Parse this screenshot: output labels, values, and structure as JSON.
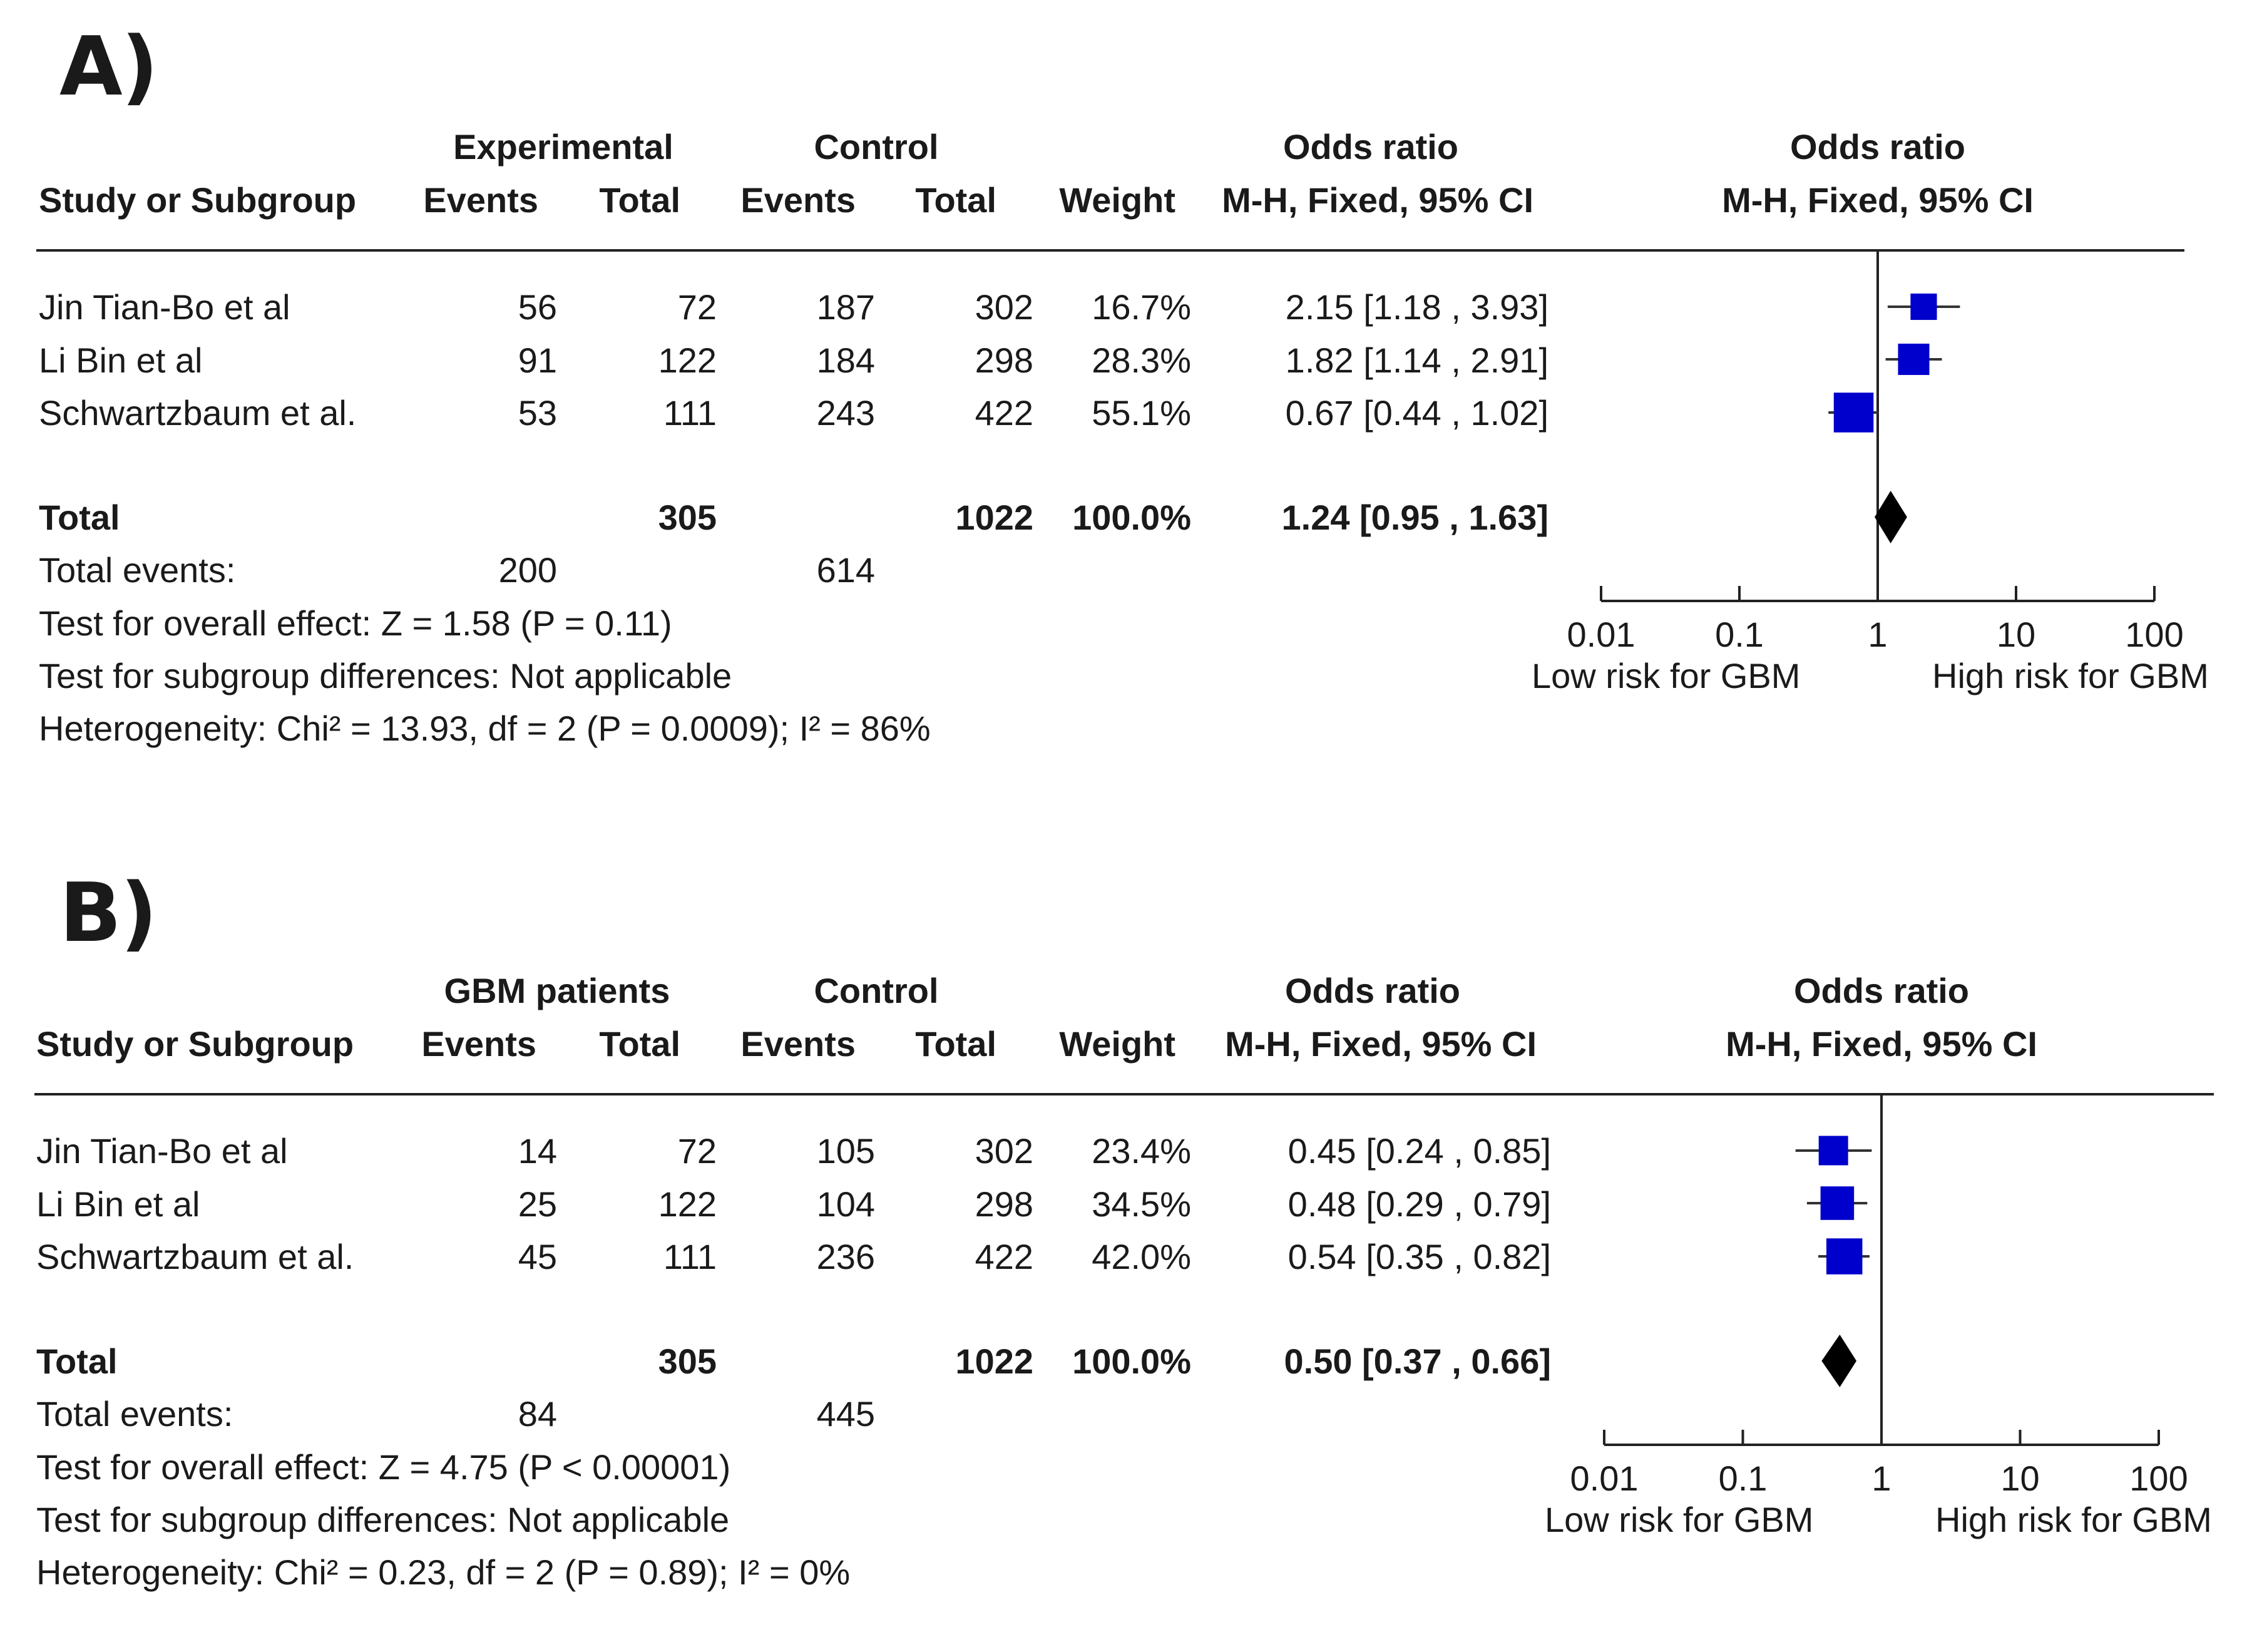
{
  "panels": [
    {
      "label": "A)",
      "header": {
        "group1": "Experimental",
        "group2": "Control",
        "or_top": "Odds ratio",
        "study": "Study or Subgroup",
        "events1": "Events",
        "total1": "Total",
        "events2": "Events",
        "total2": "Total",
        "weight": "Weight",
        "or_method": "M-H, Fixed, 95% CI",
        "plot_top": "Odds ratio",
        "plot_method": "M-H, Fixed, 95% CI"
      },
      "rows": [
        {
          "study": "Jin Tian-Bo et al",
          "e1": "56",
          "t1": "72",
          "e2": "187",
          "t2": "302",
          "weight": "16.7%",
          "ci_text": "2.15 [1.18 , 3.93]"
        },
        {
          "study": "Li Bin et al",
          "e1": "91",
          "t1": "122",
          "e2": "184",
          "t2": "298",
          "weight": "28.3%",
          "ci_text": "1.82 [1.14 , 2.91]"
        },
        {
          "study": "Schwartzbaum et al.",
          "e1": "53",
          "t1": "111",
          "e2": "243",
          "t2": "422",
          "weight": "55.1%",
          "ci_text": "0.67 [0.44 , 1.02]"
        }
      ],
      "total": {
        "label": "Total",
        "t1": "305",
        "t2": "1022",
        "weight": "100.0%",
        "ci_text": "1.24 [0.95 , 1.63]"
      },
      "total_events": {
        "label": "Total events:",
        "e1": "200",
        "e2": "614"
      },
      "footnotes": [
        "Test for overall effect: Z = 1.58 (P = 0.11)",
        "Test for subgroup differences: Not applicable",
        "Heterogeneity: Chi² = 13.93, df = 2 (P = 0.0009); I² = 86%"
      ],
      "axis": {
        "ticks": [
          "0.01",
          "0.1",
          "1",
          "10",
          "100"
        ],
        "left_label": "Low risk for GBM",
        "right_label": "High risk for GBM"
      }
    },
    {
      "label": "B)",
      "header": {
        "group1": "GBM patients",
        "group2": "Control",
        "or_top": "Odds ratio",
        "study": "Study or Subgroup",
        "events1": "Events",
        "total1": "Total",
        "events2": "Events",
        "total2": "Total",
        "weight": "Weight",
        "or_method": "M-H, Fixed, 95% CI",
        "plot_top": "Odds ratio",
        "plot_method": "M-H, Fixed, 95% CI"
      },
      "rows": [
        {
          "study": "Jin Tian-Bo et al",
          "e1": "14",
          "t1": "72",
          "e2": "105",
          "t2": "302",
          "weight": "23.4%",
          "ci_text": "0.45 [0.24 , 0.85]"
        },
        {
          "study": "Li Bin et al",
          "e1": "25",
          "t1": "122",
          "e2": "104",
          "t2": "298",
          "weight": "34.5%",
          "ci_text": "0.48 [0.29 , 0.79]"
        },
        {
          "study": "Schwartzbaum et al.",
          "e1": "45",
          "t1": "111",
          "e2": "236",
          "t2": "422",
          "weight": "42.0%",
          "ci_text": "0.54 [0.35 , 0.82]"
        }
      ],
      "total": {
        "label": "Total",
        "t1": "305",
        "t2": "1022",
        "weight": "100.0%",
        "ci_text": "0.50 [0.37 , 0.66]"
      },
      "total_events": {
        "label": "Total events:",
        "e1": "84",
        "e2": "445"
      },
      "footnotes": [
        "Test for overall effect: Z = 4.75 (P < 0.00001)",
        "Test for subgroup differences: Not applicable",
        "Heterogeneity: Chi² = 0.23, df = 2 (P = 0.89); I² = 0%"
      ],
      "axis": {
        "ticks": [
          "0.01",
          "0.1",
          "1",
          "10",
          "100"
        ],
        "left_label": "Low risk for GBM",
        "right_label": "High risk for GBM"
      }
    }
  ],
  "chart_data": [
    {
      "type": "scatter",
      "xlabel": "",
      "ylabel": "",
      "x_scale": "log",
      "xlim": [
        0.01,
        100
      ],
      "reference_line": 1,
      "marker_color": "#0000cc",
      "series": [
        {
          "values": [
            {
              "label": "Jin Tian-Bo et al",
              "or": 2.15,
              "lo": 1.18,
              "hi": 3.93,
              "weight": 16.7
            },
            {
              "label": "Li Bin et al",
              "or": 1.82,
              "lo": 1.14,
              "hi": 2.91,
              "weight": 28.3
            },
            {
              "label": "Schwartzbaum et al.",
              "or": 0.67,
              "lo": 0.44,
              "hi": 1.02,
              "weight": 55.1
            }
          ]
        }
      ],
      "pooled": {
        "label": "Total",
        "or": 1.24,
        "lo": 0.95,
        "hi": 1.63
      }
    },
    {
      "type": "scatter",
      "xlabel": "",
      "ylabel": "",
      "x_scale": "log",
      "xlim": [
        0.01,
        100
      ],
      "reference_line": 1,
      "marker_color": "#0000cc",
      "series": [
        {
          "values": [
            {
              "label": "Jin Tian-Bo et al",
              "or": 0.45,
              "lo": 0.24,
              "hi": 0.85,
              "weight": 23.4
            },
            {
              "label": "Li Bin et al",
              "or": 0.48,
              "lo": 0.29,
              "hi": 0.79,
              "weight": 34.5
            },
            {
              "label": "Schwartzbaum et al.",
              "or": 0.54,
              "lo": 0.35,
              "hi": 0.82,
              "weight": 42.0
            }
          ]
        }
      ],
      "pooled": {
        "label": "Total",
        "or": 0.5,
        "lo": 0.37,
        "hi": 0.66
      }
    }
  ]
}
